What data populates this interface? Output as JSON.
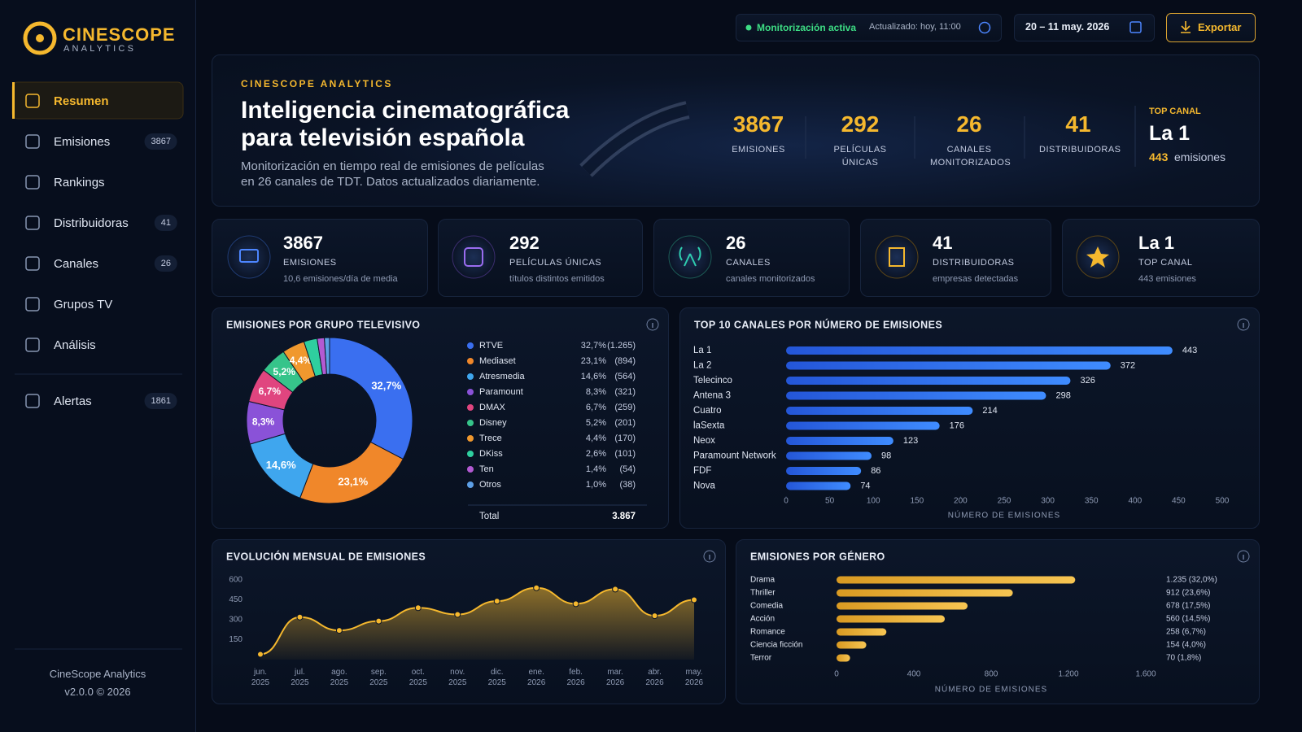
{
  "sidebar": {
    "brand": "CINESCOPE",
    "brand_sub": "ANALYTICS",
    "nav": [
      {
        "label": "Resumen"
      },
      {
        "label": "Emisiones",
        "badge": "3867"
      },
      {
        "label": "Rankings"
      },
      {
        "label": "Distribuidoras",
        "badge": "41"
      },
      {
        "label": "Canales",
        "badge": "26"
      },
      {
        "label": "Grupos TV"
      },
      {
        "label": "Análisis"
      }
    ],
    "alerts": {
      "label": "Alertas",
      "badge": "1861"
    },
    "footer": [
      "CineScope Analytics",
      "v2.0.0  © 2026"
    ]
  },
  "topbar": {
    "status": "Monitorización activa",
    "updated": "Actualizado: hoy, 11:00",
    "date_range": "20 – 11 may. 2026",
    "export": "Exportar"
  },
  "hero": {
    "eyebrow": "CINESCOPE ANALYTICS",
    "title": [
      "Inteligencia cinematográfica",
      "para televisión española"
    ],
    "description": [
      "Monitorización en tiempo real de emisiones de películas",
      "en 26 canales de TDT. Datos actualizados diariamente."
    ],
    "stats": [
      {
        "value": "3867",
        "label": "EMISIONES"
      },
      {
        "value": "292",
        "label": "PELÍCULAS ÚNICAS"
      },
      {
        "value": "26",
        "label": "CANALES MONITORIZADOS"
      },
      {
        "value": "41",
        "label": "DISTRIBUIDORAS"
      }
    ],
    "top": {
      "label": "TOP CANAL",
      "value": "La 1",
      "count": "443",
      "unit": "emisiones"
    }
  },
  "kpis": [
    {
      "value": "3867",
      "label": "EMISIONES",
      "sub": "10,6 emisiones/día de media"
    },
    {
      "value": "292",
      "label": "PELÍCULAS ÚNICAS",
      "sub": "títulos distintos emitidos"
    },
    {
      "value": "26",
      "label": "CANALES",
      "sub": "canales monitorizados"
    },
    {
      "value": "41",
      "label": "DISTRIBUIDORAS",
      "sub": "empresas detectadas"
    },
    {
      "value": "La 1",
      "label": "TOP CANAL",
      "sub": "443 emisiones"
    }
  ],
  "chart_data": [
    {
      "type": "pie",
      "title": "EMISIONES POR GRUPO TELEVISIVO",
      "categories": [
        "RTVE",
        "Mediaset",
        "Atresmedia",
        "Paramount",
        "DMAX",
        "Disney",
        "Trece",
        "DKiss",
        "Ten",
        "Otros"
      ],
      "values": [
        32.7,
        23.1,
        14.6,
        8.3,
        6.7,
        5.2,
        4.4,
        2.6,
        1.4,
        1.0
      ],
      "value_labels": [
        "32,7%",
        "23,1%",
        "14,6%",
        "8,3%",
        "6,7%",
        "5,2%",
        "4,4%",
        "2,6%",
        "1,4%",
        "1,0%"
      ],
      "counts": [
        1265,
        894,
        564,
        321,
        259,
        201,
        170,
        101,
        54,
        38
      ],
      "count_labels": [
        "(1.265)",
        "(894)",
        "(564)",
        "(321)",
        "(259)",
        "(201)",
        "(170)",
        "(101)",
        "(54)",
        "(38)"
      ],
      "colors": [
        "#3a6ff0",
        "#f0872a",
        "#3fa6ee",
        "#8a52d8",
        "#e0457f",
        "#36c48a",
        "#f0982e",
        "#2fcf9f",
        "#b35ad2",
        "#5d9fe6"
      ],
      "total": {
        "label": "Total",
        "value": "3.867"
      }
    },
    {
      "type": "bar",
      "title": "TOP 10 CANALES POR NÚMERO DE EMISIONES",
      "categories": [
        "La 1",
        "La 2",
        "Telecinco",
        "Antena 3",
        "Cuatro",
        "laSexta",
        "Neox",
        "Paramount Network",
        "FDF",
        "Nova"
      ],
      "values": [
        443,
        372,
        326,
        298,
        214,
        176,
        123,
        98,
        86,
        74
      ],
      "color": "#2f6df5",
      "xlim": [
        0,
        500
      ],
      "xticks": [
        0,
        50,
        100,
        150,
        200,
        250,
        300,
        350,
        400,
        450,
        500
      ],
      "xlabel": "NÚMERO DE EMISIONES"
    },
    {
      "type": "line",
      "title": "EVOLUCIÓN MENSUAL DE EMISIONES",
      "categories": [
        "jun. 2025",
        "jul. 2025",
        "ago. 2025",
        "sep. 2025",
        "oct. 2025",
        "nov. 2025",
        "dic. 2025",
        "ene. 2026",
        "feb. 2026",
        "mar. 2026",
        "abr. 2026",
        "may. 2026"
      ],
      "values": [
        40,
        320,
        220,
        290,
        390,
        340,
        440,
        540,
        420,
        530,
        330,
        450
      ],
      "color": "#f5b82e",
      "ylim": [
        0,
        600
      ],
      "yticks": [
        150,
        300,
        450,
        600
      ]
    },
    {
      "type": "bar",
      "title": "EMISIONES POR GÉNERO",
      "categories": [
        "Drama",
        "Thriller",
        "Comedia",
        "Acción",
        "Romance",
        "Ciencia ficción",
        "Terror"
      ],
      "values": [
        1235,
        912,
        678,
        560,
        258,
        154,
        70
      ],
      "value_labels": [
        "1.235 (32,0%)",
        "912 (23,6%)",
        "678 (17,5%)",
        "560 (14,5%)",
        "258 (6,7%)",
        "154 (4,0%)",
        "70 (1,8%)"
      ],
      "color": "#f0b43a",
      "xlim": [
        0,
        1600
      ],
      "xticks": [
        0,
        400,
        800,
        {
          "value": 1200,
          "label": "1.200"
        },
        {
          "value": 1600,
          "label": "1.600"
        }
      ],
      "xlabel": "NÚMERO DE EMISIONES"
    }
  ]
}
